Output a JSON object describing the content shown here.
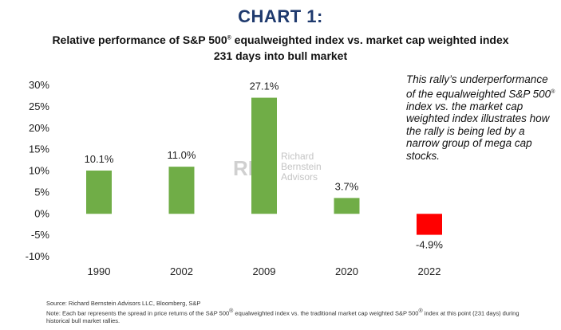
{
  "heading": "CHART 1:",
  "subtitle_line1_pre": "Relative performance of S&P 500",
  "subtitle_line1_sup": "®",
  "subtitle_line1_post": " equalweighted index vs. market cap weighted index",
  "subtitle_line2": "231 days into bull market",
  "annotation_pre": "This rally’s underperformance of the equalweighted S&P 500",
  "annotation_sup": "®",
  "annotation_post": " index vs. the market cap weighted index illustrates how the rally is being led by a narrow group of mega cap stocks.",
  "watermark": {
    "logo": "RB",
    "line1": "Richard",
    "line2": "Bernstein",
    "line3": "Advisors"
  },
  "footnote": {
    "source": "Source: Richard Bernstein Advisors LLC, Bloomberg, S&P",
    "note_pre": "Note: Each bar represents the spread in price returns of the S&P 500",
    "note_sup": "®",
    "note_mid": " equalweighted index vs. the traditional market cap weighted S&P 500",
    "note_sup2": "®",
    "note_post": " index at this point (231 days) during historical bull market rallies."
  },
  "chart_data": {
    "type": "bar",
    "title": "Relative performance of S&P 500® equalweighted index vs. market cap weighted index 231 days into bull market",
    "xlabel": "",
    "ylabel": "",
    "categories": [
      "1990",
      "2002",
      "2009",
      "2020",
      "2022"
    ],
    "values": [
      10.1,
      11.0,
      27.1,
      3.7,
      -4.9
    ],
    "data_labels": [
      "10.1%",
      "11.0%",
      "27.1%",
      "3.7%",
      "-4.9%"
    ],
    "ylim": [
      -10,
      30
    ],
    "yticks": [
      30,
      25,
      20,
      15,
      10,
      5,
      0,
      -5,
      -10
    ],
    "ytick_labels": [
      "30%",
      "25%",
      "20%",
      "15%",
      "10%",
      "5%",
      "0%",
      "-5%",
      "-10%"
    ],
    "grid": false,
    "colors": {
      "positive": "#70ad47",
      "negative": "#ff0000"
    }
  }
}
